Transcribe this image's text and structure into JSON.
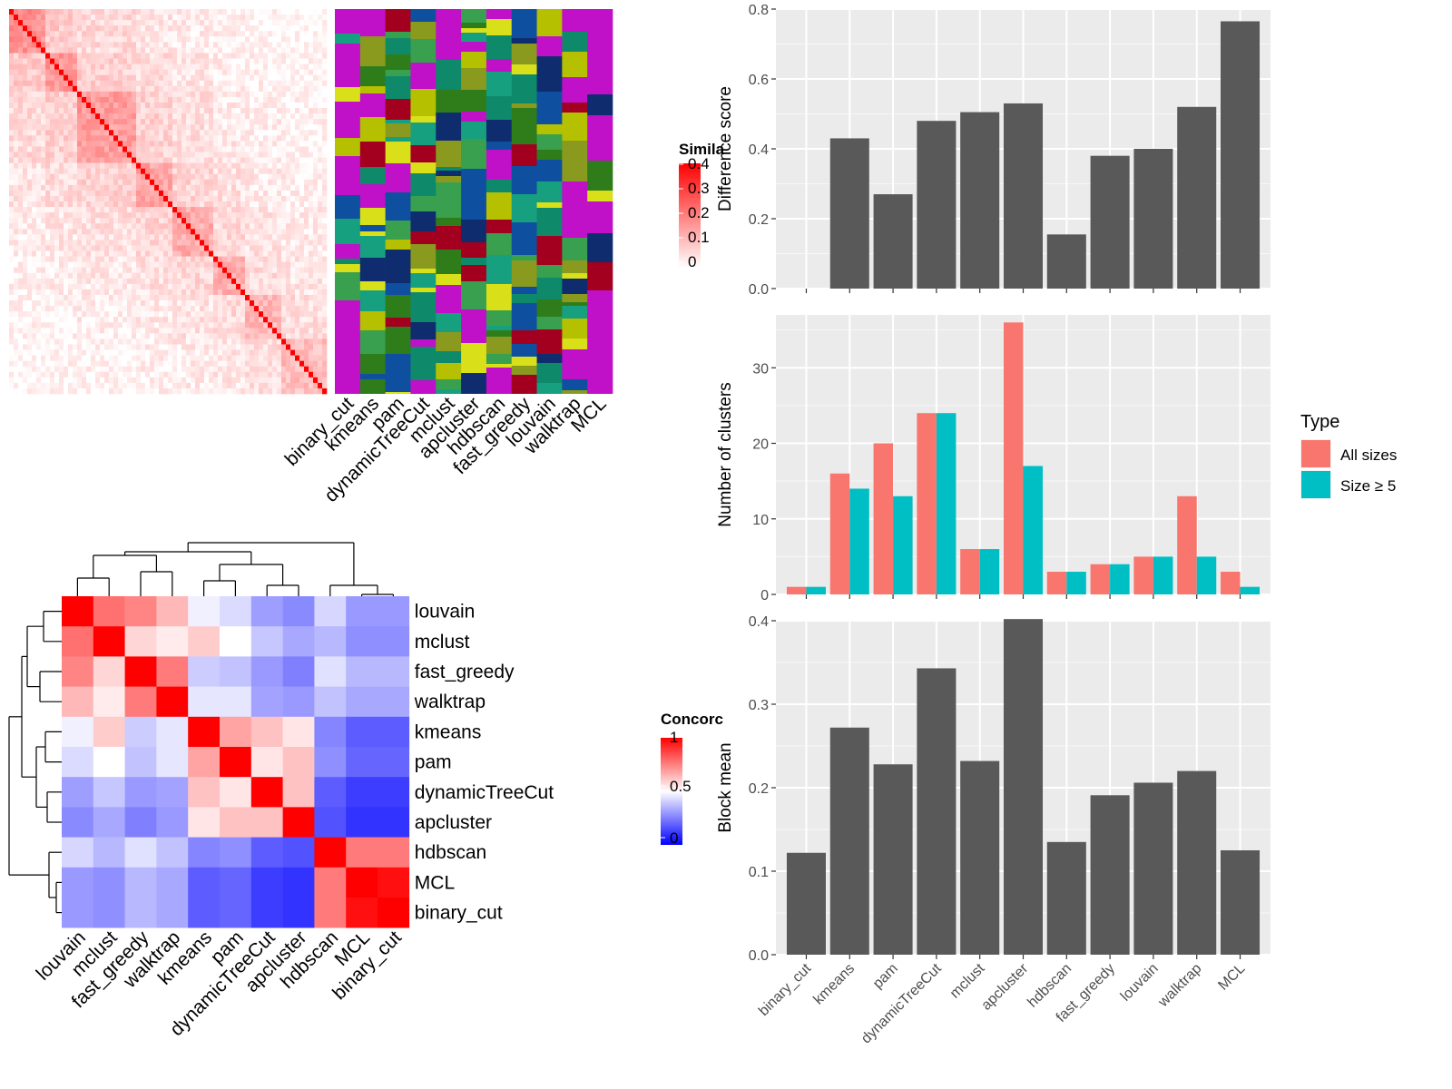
{
  "methods": [
    "binary_cut",
    "kmeans",
    "pam",
    "dynamicTreeCut",
    "mclust",
    "apcluster",
    "hdbscan",
    "fast_greedy",
    "louvain",
    "walktrap",
    "MCL"
  ],
  "heatmap_labels": [
    "binary_cut",
    "kmeans",
    "pam",
    "dynamicTreeCut",
    "mclust",
    "apcluster",
    "hdbscan",
    "fast_greedy",
    "louvain",
    "walktrap",
    "MCL"
  ],
  "similarity_legend": {
    "title": "Simila",
    "ticks": [
      "0.4",
      "0.3",
      "0.2",
      "0.1",
      "0"
    ]
  },
  "concordance_legend": {
    "title": "Concorc",
    "ticks": [
      "1",
      "0.5",
      "0"
    ]
  },
  "concordance_order": [
    "louvain",
    "mclust",
    "fast_greedy",
    "walktrap",
    "kmeans",
    "pam",
    "dynamicTreeCut",
    "apcluster",
    "hdbscan",
    "MCL",
    "binary_cut"
  ],
  "chart_data": [
    {
      "type": "heatmap",
      "title": "",
      "legend_title": "Similarity",
      "colorscale": [
        "#ffffff",
        "#ff0000"
      ],
      "range": [
        0,
        0.4
      ]
    },
    {
      "type": "heatmap",
      "title": "",
      "x_categories": [
        "binary_cut",
        "kmeans",
        "pam",
        "dynamicTreeCut",
        "mclust",
        "apcluster",
        "hdbscan",
        "fast_greedy",
        "louvain",
        "walktrap",
        "MCL"
      ],
      "cluster_palette": [
        "#c010c8",
        "#0f2d6e",
        "#8a9a1e",
        "#17a080",
        "#2e7d1a",
        "#d9e01a",
        "#0f4fa0",
        "#a30020",
        "#38a04e",
        "#0e8a6a",
        "#b5c000"
      ]
    },
    {
      "type": "heatmap",
      "legend_title": "Concordance",
      "colorscale": [
        "#0000ff",
        "#ffffff",
        "#ff0000"
      ],
      "range": [
        0,
        1
      ],
      "rows": [
        "louvain",
        "mclust",
        "fast_greedy",
        "walktrap",
        "kmeans",
        "pam",
        "dynamicTreeCut",
        "apcluster",
        "hdbscan",
        "MCL",
        "binary_cut"
      ],
      "columns": [
        "louvain",
        "mclust",
        "fast_greedy",
        "walktrap",
        "kmeans",
        "pam",
        "dynamicTreeCut",
        "apcluster",
        "hdbscan",
        "MCL",
        "binary_cut"
      ],
      "values": [
        [
          1.0,
          0.78,
          0.74,
          0.64,
          0.47,
          0.43,
          0.31,
          0.27,
          0.42,
          0.3,
          0.3
        ],
        [
          0.78,
          1.0,
          0.58,
          0.54,
          0.6,
          0.5,
          0.39,
          0.33,
          0.36,
          0.28,
          0.28
        ],
        [
          0.74,
          0.58,
          1.0,
          0.76,
          0.4,
          0.38,
          0.3,
          0.25,
          0.44,
          0.36,
          0.36
        ],
        [
          0.64,
          0.54,
          0.76,
          1.0,
          0.45,
          0.45,
          0.32,
          0.3,
          0.38,
          0.33,
          0.33
        ],
        [
          0.47,
          0.6,
          0.4,
          0.45,
          1.0,
          0.68,
          0.62,
          0.55,
          0.26,
          0.18,
          0.18
        ],
        [
          0.43,
          0.5,
          0.38,
          0.45,
          0.68,
          1.0,
          0.55,
          0.62,
          0.28,
          0.2,
          0.2
        ],
        [
          0.31,
          0.39,
          0.3,
          0.32,
          0.62,
          0.55,
          1.0,
          0.62,
          0.18,
          0.12,
          0.12
        ],
        [
          0.27,
          0.33,
          0.25,
          0.3,
          0.55,
          0.62,
          0.62,
          1.0,
          0.16,
          0.1,
          0.1
        ],
        [
          0.42,
          0.36,
          0.44,
          0.38,
          0.26,
          0.28,
          0.18,
          0.16,
          1.0,
          0.76,
          0.76
        ],
        [
          0.3,
          0.28,
          0.36,
          0.33,
          0.18,
          0.2,
          0.12,
          0.1,
          0.76,
          1.0,
          0.97
        ],
        [
          0.3,
          0.28,
          0.36,
          0.33,
          0.18,
          0.2,
          0.12,
          0.1,
          0.76,
          0.97,
          1.0
        ]
      ]
    },
    {
      "type": "bar",
      "title": "",
      "xlabel": "",
      "ylabel": "Difference score",
      "categories": [
        "binary_cut",
        "kmeans",
        "pam",
        "dynamicTreeCut",
        "mclust",
        "apcluster",
        "hdbscan",
        "fast_greedy",
        "louvain",
        "walktrap",
        "MCL"
      ],
      "values": [
        0,
        0.43,
        0.27,
        0.48,
        0.505,
        0.53,
        0.155,
        0.38,
        0.4,
        0.52,
        0.765
      ],
      "ylim": [
        0,
        0.8
      ],
      "yticks": [
        "0.0",
        "0.2",
        "0.4",
        "0.6",
        "0.8"
      ]
    },
    {
      "type": "bar",
      "title": "",
      "xlabel": "",
      "ylabel": "Number of clusters",
      "categories": [
        "binary_cut",
        "kmeans",
        "pam",
        "dynamicTreeCut",
        "mclust",
        "apcluster",
        "hdbscan",
        "fast_greedy",
        "louvain",
        "walktrap",
        "MCL"
      ],
      "series": [
        {
          "name": "All sizes",
          "values": [
            1,
            16,
            20,
            24,
            6,
            36,
            3,
            4,
            5,
            13,
            3
          ],
          "color": "#f8766d"
        },
        {
          "name": "Size ≥ 5",
          "values": [
            1,
            14,
            13,
            24,
            6,
            17,
            3,
            4,
            5,
            5,
            1
          ],
          "color": "#00bfc4"
        }
      ],
      "ylim": [
        0,
        37
      ],
      "yticks": [
        "0",
        "10",
        "20",
        "30"
      ],
      "legend_title": "Type",
      "legend_position": "right"
    },
    {
      "type": "bar",
      "title": "",
      "xlabel": "",
      "ylabel": "Block mean",
      "categories": [
        "binary_cut",
        "kmeans",
        "pam",
        "dynamicTreeCut",
        "mclust",
        "apcluster",
        "hdbscan",
        "fast_greedy",
        "louvain",
        "walktrap",
        "MCL"
      ],
      "values": [
        0.122,
        0.272,
        0.228,
        0.343,
        0.232,
        0.402,
        0.135,
        0.191,
        0.206,
        0.22,
        0.125
      ],
      "ylim": [
        0,
        0.4
      ],
      "yticks": [
        "0.0",
        "0.1",
        "0.2",
        "0.3",
        "0.4"
      ]
    }
  ]
}
